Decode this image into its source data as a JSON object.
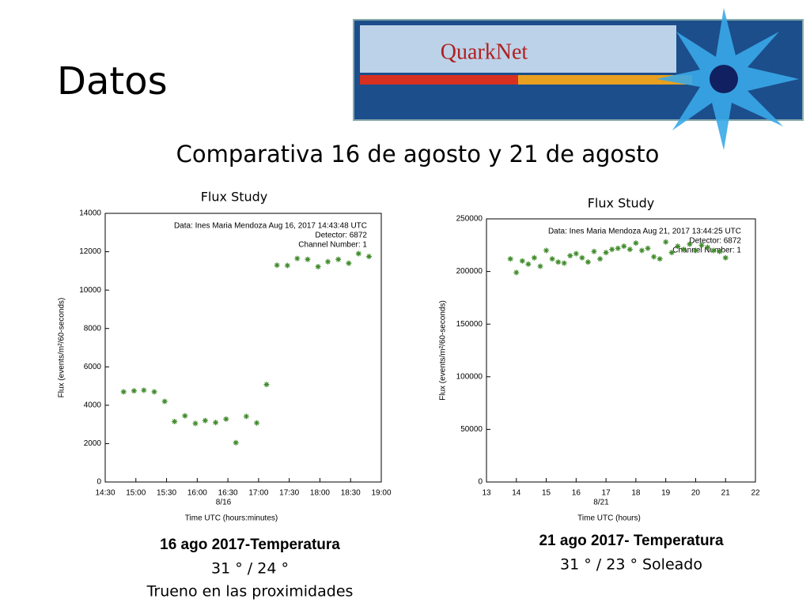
{
  "title": "Datos",
  "subtitle": "Comparativa 16 de agosto y 21 de agosto",
  "logo": "QuarkNet",
  "chart_data": [
    {
      "type": "scatter",
      "title": "Flux Study",
      "xlabel": "Time UTC (hours:minutes)",
      "ylabel": "Flux (events/m²/60-seconds)",
      "date_label": "8/16",
      "annotations": [
        "Data: Ines Maria Mendoza   Aug 16, 2017 14:43:48 UTC",
        "Detector: 6872",
        "Channel Number: 1"
      ],
      "color": "#3f8a2a",
      "x": [
        14.8,
        14.97,
        15.13,
        15.3,
        15.47,
        15.63,
        15.8,
        15.97,
        16.13,
        16.3,
        16.47,
        16.63,
        16.8,
        16.97,
        17.13,
        17.3,
        17.47,
        17.63,
        17.8,
        17.97,
        18.13,
        18.3,
        18.47,
        18.63,
        18.8
      ],
      "values": [
        4700,
        4750,
        4780,
        4700,
        4200,
        3150,
        3450,
        3050,
        3200,
        3100,
        3280,
        2050,
        3420,
        3080,
        5080,
        11300,
        11280,
        11650,
        11600,
        11220,
        11480,
        11600,
        11400,
        11900,
        11750
      ],
      "xlim": [
        14.5,
        19
      ],
      "xticks": [
        {
          "value": 14.5,
          "label": "14:30"
        },
        {
          "value": 15,
          "label": "15:00"
        },
        {
          "value": 15.5,
          "label": "15:30"
        },
        {
          "value": 16,
          "label": "16:00"
        },
        {
          "value": 16.5,
          "label": "16:30"
        },
        {
          "value": 17,
          "label": "17:00"
        },
        {
          "value": 17.5,
          "label": "17:30"
        },
        {
          "value": 18,
          "label": "18:00"
        },
        {
          "value": 18.5,
          "label": "18:30"
        },
        {
          "value": 19,
          "label": "19:00"
        }
      ],
      "ylim": [
        0,
        14000
      ],
      "yticks": [
        0,
        2000,
        4000,
        6000,
        8000,
        10000,
        12000,
        14000
      ]
    },
    {
      "type": "scatter",
      "title": "Flux Study",
      "xlabel": "Time UTC (hours)",
      "ylabel": "Flux (events/m²/60-seconds)",
      "date_label": "8/21",
      "annotations": [
        "Data: Ines Maria Mendoza   Aug 21, 2017 13:44:25 UTC",
        "Detector: 6872",
        "Channel Number: 1"
      ],
      "color": "#3f8a2a",
      "x": [
        13.8,
        14.0,
        14.2,
        14.4,
        14.6,
        14.8,
        15.0,
        15.2,
        15.4,
        15.6,
        15.8,
        16.0,
        16.2,
        16.4,
        16.6,
        16.8,
        17.0,
        17.2,
        17.4,
        17.6,
        17.8,
        18.0,
        18.2,
        18.4,
        18.6,
        18.8,
        19.0,
        19.2,
        19.4,
        19.6,
        19.8,
        20.0,
        20.2,
        20.4,
        20.6,
        20.8,
        21.0
      ],
      "values": [
        212000,
        199000,
        210000,
        207000,
        213000,
        205000,
        220000,
        212000,
        209000,
        208000,
        215000,
        217000,
        213000,
        209000,
        219000,
        212000,
        218000,
        221000,
        222000,
        224000,
        221000,
        227000,
        220000,
        222000,
        214000,
        212000,
        228000,
        218000,
        224000,
        221000,
        226000,
        220000,
        225000,
        223000,
        220000,
        219000,
        213000
      ],
      "xlim": [
        13,
        22
      ],
      "xticks": [
        13,
        14,
        15,
        16,
        17,
        18,
        19,
        20,
        21,
        22
      ],
      "ylim": [
        0,
        250000
      ],
      "yticks": [
        0,
        50000,
        100000,
        150000,
        200000,
        250000
      ]
    }
  ],
  "captions": [
    {
      "heading": "16 ago 2017-Temperatura",
      "lines": [
        "31 ° / 24 °",
        "Trueno en las proximidades"
      ]
    },
    {
      "heading": "21 ago 2017- Temperatura",
      "lines": [
        "31 ° / 23 ° Soleado"
      ]
    }
  ]
}
